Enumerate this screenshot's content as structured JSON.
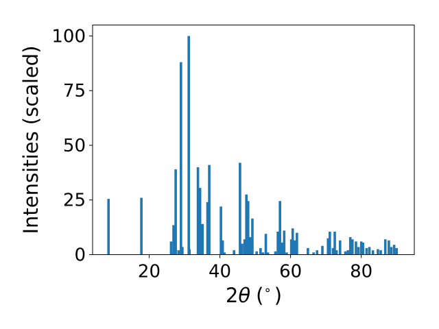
{
  "chart_data": {
    "type": "bar",
    "xlabel_main": "2",
    "xlabel_symbol": "θ",
    "xlabel_unit": "(",
    "xlabel_degree": "∘",
    "xlabel_close": ")",
    "ylabel": "Intensities (scaled)",
    "xlim": [
      4.0,
      95.0
    ],
    "ylim": [
      0,
      105
    ],
    "xticks": [
      20,
      40,
      60,
      80
    ],
    "yticks": [
      0,
      25,
      50,
      75,
      100
    ],
    "bar_width_deg": 0.7,
    "bar_color": "#1f77b4",
    "x": [
      8.5,
      17.8,
      26.2,
      26.9,
      27.5,
      28.3,
      29.0,
      29.4,
      31.2,
      31.4,
      33.8,
      34.4,
      35.1,
      36.5,
      37.0,
      40.3,
      40.8,
      41.3,
      44.0,
      45.7,
      46.3,
      47.0,
      47.5,
      48.0,
      48.6,
      49.2,
      50.4,
      51.5,
      52.2,
      53.0,
      53.6,
      55.7,
      56.4,
      57.0,
      57.6,
      58.2,
      58.9,
      60.2,
      60.6,
      61.2,
      61.8,
      64.9,
      66.5,
      67.5,
      69.0,
      70.6,
      71.1,
      72.0,
      72.5,
      73.0,
      74.0,
      75.5,
      76.2,
      76.9,
      77.5,
      78.5,
      79.2,
      80.0,
      80.5,
      81.5,
      82.3,
      83.3,
      84.7,
      85.5,
      86.8,
      87.8,
      88.5,
      89.3,
      90.0
    ],
    "values": [
      25.5,
      26.0,
      6.0,
      13.5,
      39.0,
      2.0,
      88.0,
      3.5,
      100.0,
      2.5,
      40.0,
      30.5,
      14.0,
      24.0,
      41.0,
      22.0,
      6.5,
      1.0,
      2.0,
      42.0,
      5.0,
      7.0,
      27.5,
      24.5,
      8.0,
      16.5,
      1.5,
      3.0,
      1.0,
      9.5,
      1.0,
      1.5,
      10.5,
      24.5,
      5.5,
      11.0,
      1.0,
      7.0,
      12.0,
      6.5,
      10.0,
      3.0,
      1.0,
      2.0,
      4.0,
      7.5,
      10.5,
      3.0,
      10.5,
      2.0,
      6.5,
      1.5,
      2.0,
      8.0,
      7.0,
      6.0,
      3.5,
      6.0,
      5.5,
      3.0,
      3.5,
      2.0,
      2.5,
      2.0,
      7.0,
      6.5,
      3.5,
      4.5,
      3.0
    ]
  }
}
